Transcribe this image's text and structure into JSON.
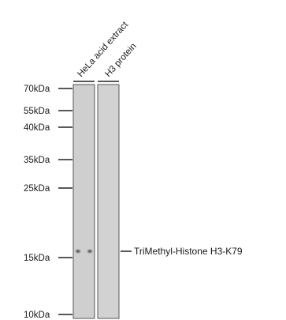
{
  "lanes": [
    {
      "label": "HeLa acid extract"
    },
    {
      "label": "H3 protein"
    }
  ],
  "markers": [
    {
      "label": "70kDa"
    },
    {
      "label": "55kDa"
    },
    {
      "label": "40kDa"
    },
    {
      "label": "35kDa"
    },
    {
      "label": "25kDa"
    },
    {
      "label": "15kDa"
    },
    {
      "label": "10kDa"
    }
  ],
  "band": {
    "label": "TriMethyl-Histone H3-K79"
  }
}
